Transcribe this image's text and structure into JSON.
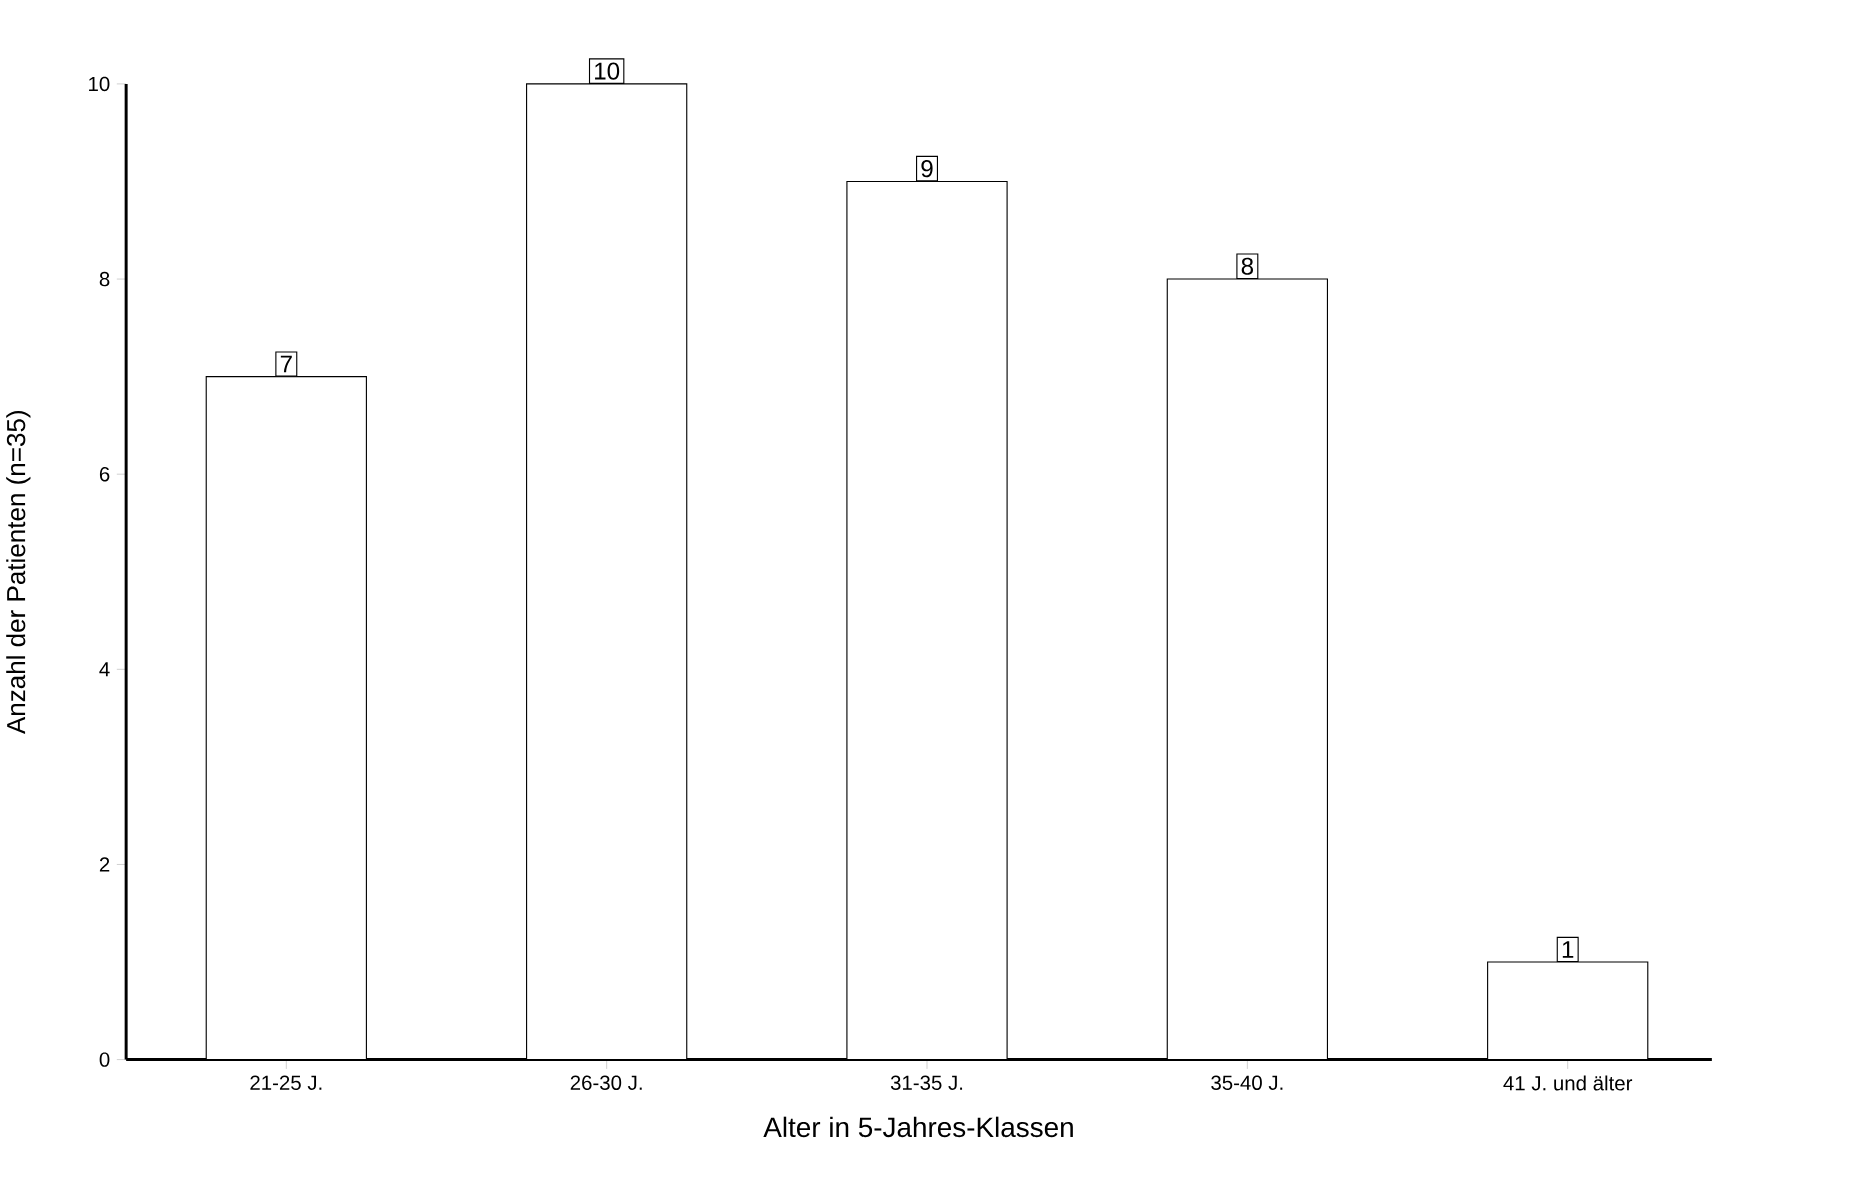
{
  "chart_data": {
    "type": "bar",
    "xlabel": "Alter in 5-Jahres-Klassen",
    "ylabel": "Anzahl der Patienten (n=35)",
    "categories": [
      "21-25 J.",
      "26-30 J.",
      "31-35 J.",
      "35-40 J.",
      "41 J. und älter"
    ],
    "values": [
      7,
      10,
      9,
      8,
      1
    ],
    "color": "#ffffff",
    "ylim": [
      0,
      10
    ],
    "yticks": [
      0,
      2,
      4,
      6,
      8,
      10
    ],
    "data_labels": true,
    "grid": false
  }
}
